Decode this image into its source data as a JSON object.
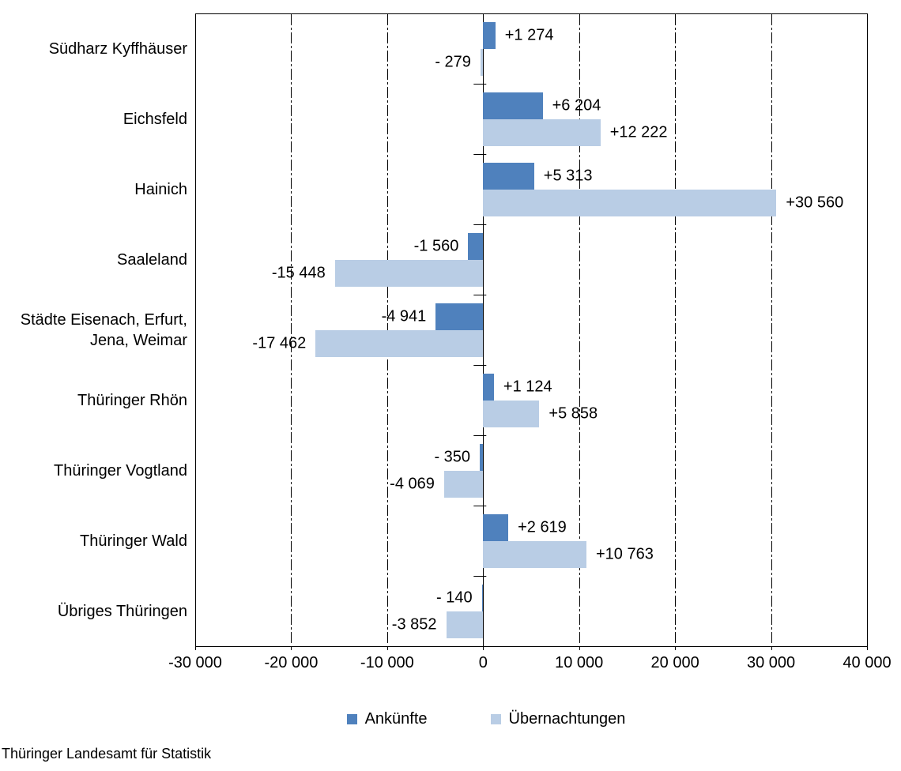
{
  "chart_data": {
    "type": "bar",
    "orientation": "horizontal",
    "categories": [
      "Südharz Kyffhäuser",
      "Eichsfeld",
      "Hainich",
      "Saaleland",
      "Städte Eisenach, Erfurt,\nJena, Weimar",
      "Thüringer Rhön",
      "Thüringer Vogtland",
      "Thüringer Wald",
      "Übriges Thüringen"
    ],
    "series": [
      {
        "name": "Ankünfte",
        "color": "#4f81bd",
        "values": [
          1274,
          6204,
          5313,
          -1560,
          -4941,
          1124,
          -350,
          2619,
          -140
        ],
        "labels": [
          "+1 274",
          "+6 204",
          "+5 313",
          "-1 560",
          "-4 941",
          "+1 124",
          "- 350",
          "+2 619",
          "- 140"
        ]
      },
      {
        "name": "Übernachtungen",
        "color": "#b9cde5",
        "values": [
          -279,
          12222,
          30560,
          -15448,
          -17462,
          5858,
          -4069,
          10763,
          -3852
        ],
        "labels": [
          "- 279",
          "+12 222",
          "+30 560",
          "-15 448",
          "-17 462",
          "+5 858",
          "-4 069",
          "+10 763",
          "-3 852"
        ]
      }
    ],
    "xlim": [
      -30000,
      40000
    ],
    "x_ticks": [
      {
        "value": -30000,
        "label": "-30 000"
      },
      {
        "value": -20000,
        "label": "-20 000"
      },
      {
        "value": -10000,
        "label": "-10 000"
      },
      {
        "value": 0,
        "label": "0"
      },
      {
        "value": 10000,
        "label": "10 000"
      },
      {
        "value": 20000,
        "label": "20 000"
      },
      {
        "value": 30000,
        "label": "30 000"
      },
      {
        "value": 40000,
        "label": "40 000"
      }
    ],
    "grid": "vertical dashed gridlines every 10 000, solid zero axis",
    "legend_position": "bottom"
  },
  "footer": {
    "source": "Thüringer Landesamt für Statistik"
  }
}
